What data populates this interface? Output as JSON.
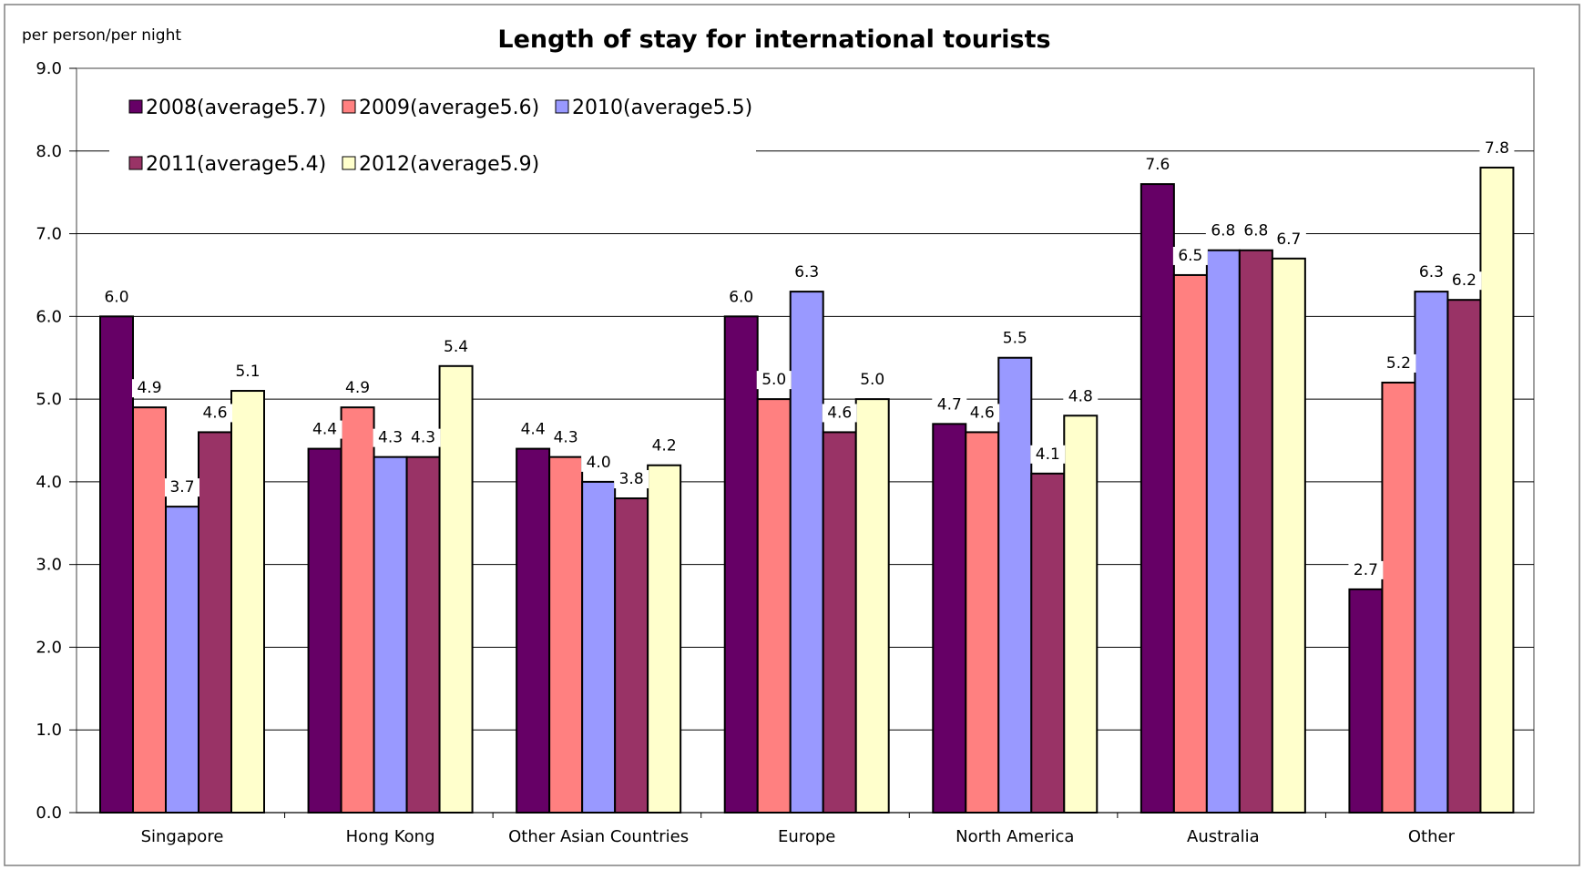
{
  "chart_data": {
    "type": "bar",
    "title": "Length of stay for international tourists",
    "ylabel": "per person/per night",
    "xlabel": "",
    "ylim": [
      0,
      9
    ],
    "yticks": [
      0.0,
      1.0,
      2.0,
      3.0,
      4.0,
      5.0,
      6.0,
      7.0,
      8.0,
      9.0
    ],
    "grid": true,
    "legend_position": "top-left",
    "categories": [
      "Singapore",
      "Hong Kong",
      "Other Asian Countries",
      "Europe",
      "North America",
      "Australia",
      "Other"
    ],
    "series": [
      {
        "name": "2008(average5.7)",
        "color": "#660066",
        "values": [
          6.0,
          4.4,
          4.4,
          6.0,
          4.7,
          7.6,
          2.7
        ]
      },
      {
        "name": "2009(average5.6)",
        "color": "#FF8080",
        "values": [
          4.9,
          4.9,
          4.3,
          5.0,
          4.6,
          6.5,
          5.2
        ]
      },
      {
        "name": "2010(average5.5)",
        "color": "#9999FF",
        "values": [
          3.7,
          4.3,
          4.0,
          6.3,
          5.5,
          6.8,
          6.3
        ]
      },
      {
        "name": "2011(average5.4)",
        "color": "#993366",
        "values": [
          4.6,
          4.3,
          3.8,
          4.6,
          4.1,
          6.8,
          6.2
        ]
      },
      {
        "name": "2012(average5.9)",
        "color": "#FFFFCC",
        "values": [
          5.1,
          5.4,
          4.2,
          5.0,
          4.8,
          6.7,
          7.8
        ]
      }
    ]
  }
}
